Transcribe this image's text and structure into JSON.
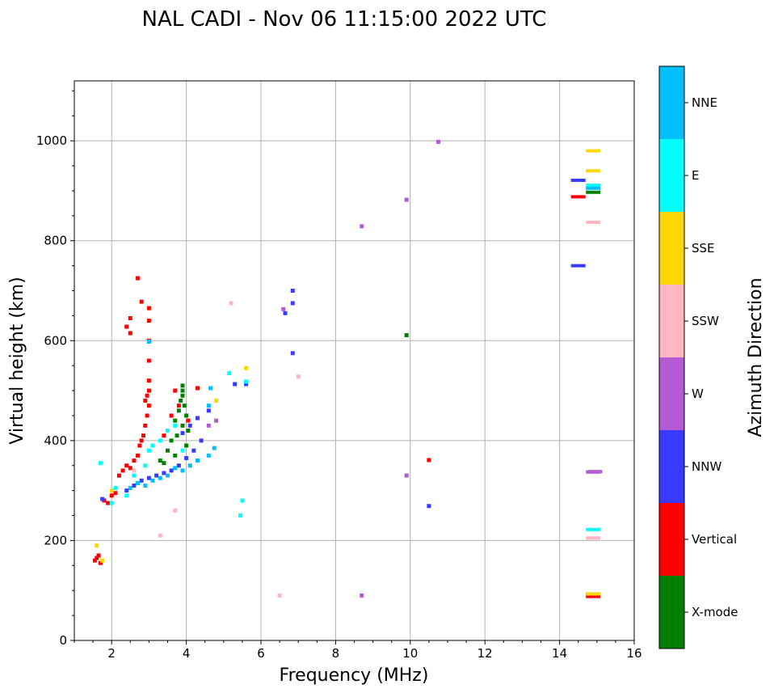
{
  "chart_data": {
    "type": "scatter",
    "title": "NAL CADI - Nov 06 11:15:00 2022 UTC",
    "xlabel": "Frequency (MHz)",
    "ylabel": "Virtual height (km)",
    "xlim": [
      1,
      16
    ],
    "ylim": [
      0,
      1120
    ],
    "xticks": [
      2,
      4,
      6,
      8,
      10,
      12,
      14,
      16
    ],
    "yticks": [
      0,
      200,
      400,
      600,
      800,
      1000
    ],
    "grid": true,
    "colorbar": {
      "label": "Azimuth Direction",
      "categories": [
        {
          "name": "X-mode",
          "color": "#008000"
        },
        {
          "name": "Vertical",
          "color": "#ff0000"
        },
        {
          "name": "NNW",
          "color": "#3a3aff"
        },
        {
          "name": "W",
          "color": "#b45ad6"
        },
        {
          "name": "SSW",
          "color": "#ffb6c1"
        },
        {
          "name": "SSE",
          "color": "#ffd700"
        },
        {
          "name": "E",
          "color": "#00ffff"
        },
        {
          "name": "NNE",
          "color": "#00bfff"
        }
      ]
    },
    "series": [
      {
        "name": "X-mode",
        "points": [
          [
            3.9,
            510
          ],
          [
            3.9,
            500
          ],
          [
            3.9,
            490
          ],
          [
            3.85,
            480
          ],
          [
            3.95,
            470
          ],
          [
            3.8,
            460
          ],
          [
            4.0,
            450
          ],
          [
            3.7,
            440
          ],
          [
            3.9,
            430
          ],
          [
            4.05,
            420
          ],
          [
            3.75,
            410
          ],
          [
            3.6,
            400
          ],
          [
            4.0,
            390
          ],
          [
            3.5,
            380
          ],
          [
            3.3,
            360
          ],
          [
            3.4,
            355
          ],
          [
            3.7,
            370
          ],
          [
            9.9,
            611
          ],
          [
            14.9,
            897
          ]
        ]
      },
      {
        "name": "Vertical",
        "points": [
          [
            1.55,
            160
          ],
          [
            1.6,
            165
          ],
          [
            1.65,
            170
          ],
          [
            1.7,
            155
          ],
          [
            1.8,
            280
          ],
          [
            1.9,
            275
          ],
          [
            2.0,
            290
          ],
          [
            2.1,
            295
          ],
          [
            2.2,
            330
          ],
          [
            2.3,
            340
          ],
          [
            2.4,
            350
          ],
          [
            2.5,
            345
          ],
          [
            2.6,
            360
          ],
          [
            2.7,
            370
          ],
          [
            2.75,
            390
          ],
          [
            2.8,
            400
          ],
          [
            2.85,
            410
          ],
          [
            2.9,
            430
          ],
          [
            2.95,
            450
          ],
          [
            3.0,
            470
          ],
          [
            2.95,
            490
          ],
          [
            3.0,
            500
          ],
          [
            2.9,
            480
          ],
          [
            3.0,
            520
          ],
          [
            3.0,
            560
          ],
          [
            3.0,
            600
          ],
          [
            3.0,
            640
          ],
          [
            3.0,
            665
          ],
          [
            2.8,
            678
          ],
          [
            2.7,
            725
          ],
          [
            2.5,
            645
          ],
          [
            2.4,
            628
          ],
          [
            2.5,
            615
          ],
          [
            3.4,
            410
          ],
          [
            3.6,
            450
          ],
          [
            3.7,
            500
          ],
          [
            3.8,
            470
          ],
          [
            4.05,
            440
          ],
          [
            4.3,
            505
          ],
          [
            10.5,
            361
          ],
          [
            14.5,
            888
          ],
          [
            14.9,
            93
          ],
          [
            14.9,
            88
          ]
        ]
      },
      {
        "name": "NNW",
        "points": [
          [
            1.75,
            283
          ],
          [
            2.4,
            300
          ],
          [
            2.6,
            310
          ],
          [
            2.8,
            320
          ],
          [
            3.0,
            325
          ],
          [
            3.2,
            330
          ],
          [
            3.4,
            335
          ],
          [
            3.6,
            340
          ],
          [
            3.8,
            350
          ],
          [
            4.0,
            365
          ],
          [
            4.2,
            380
          ],
          [
            4.4,
            400
          ],
          [
            3.9,
            415
          ],
          [
            4.1,
            430
          ],
          [
            4.3,
            445
          ],
          [
            4.6,
            460
          ],
          [
            5.3,
            513
          ],
          [
            5.6,
            513
          ],
          [
            6.65,
            655
          ],
          [
            6.85,
            675
          ],
          [
            6.85,
            700
          ],
          [
            6.85,
            575
          ],
          [
            10.5,
            269
          ],
          [
            14.5,
            750
          ],
          [
            14.5,
            921
          ]
        ]
      },
      {
        "name": "W",
        "points": [
          [
            4.6,
            430
          ],
          [
            4.8,
            440
          ],
          [
            6.6,
            663
          ],
          [
            8.7,
            829
          ],
          [
            8.7,
            90
          ],
          [
            9.9,
            330
          ],
          [
            9.9,
            882
          ],
          [
            10.75,
            998
          ],
          [
            14.9,
            337
          ],
          [
            14.95,
            338
          ]
        ]
      },
      {
        "name": "SSW",
        "points": [
          [
            2.6,
            340
          ],
          [
            3.3,
            210
          ],
          [
            3.7,
            260
          ],
          [
            5.2,
            675
          ],
          [
            6.5,
            90
          ],
          [
            7.0,
            528
          ],
          [
            14.9,
            837
          ],
          [
            14.9,
            205
          ]
        ]
      },
      {
        "name": "SSE",
        "points": [
          [
            1.6,
            190
          ],
          [
            1.75,
            160
          ],
          [
            2.0,
            300
          ],
          [
            4.8,
            480
          ],
          [
            5.6,
            545
          ],
          [
            14.9,
            940
          ],
          [
            14.9,
            980
          ],
          [
            14.9,
            93
          ]
        ]
      },
      {
        "name": "E",
        "points": [
          [
            1.7,
            355
          ],
          [
            2.0,
            275
          ],
          [
            2.1,
            305
          ],
          [
            2.4,
            290
          ],
          [
            2.6,
            330
          ],
          [
            2.9,
            350
          ],
          [
            3.0,
            380
          ],
          [
            3.1,
            390
          ],
          [
            3.3,
            400
          ],
          [
            3.5,
            420
          ],
          [
            3.7,
            430
          ],
          [
            3.9,
            380
          ],
          [
            4.3,
            360
          ],
          [
            5.5,
            280
          ],
          [
            5.45,
            250
          ],
          [
            5.15,
            535
          ],
          [
            5.6,
            518
          ],
          [
            14.9,
            911
          ],
          [
            14.9,
            222
          ]
        ]
      },
      {
        "name": "NNE",
        "points": [
          [
            2.5,
            305
          ],
          [
            2.7,
            315
          ],
          [
            2.9,
            310
          ],
          [
            3.1,
            320
          ],
          [
            3.3,
            325
          ],
          [
            3.5,
            330
          ],
          [
            3.7,
            345
          ],
          [
            3.9,
            340
          ],
          [
            4.1,
            350
          ],
          [
            4.3,
            360
          ],
          [
            4.6,
            370
          ],
          [
            4.75,
            385
          ],
          [
            4.6,
            470
          ],
          [
            4.65,
            505
          ],
          [
            3.0,
            598
          ],
          [
            14.9,
            905
          ]
        ]
      }
    ]
  }
}
